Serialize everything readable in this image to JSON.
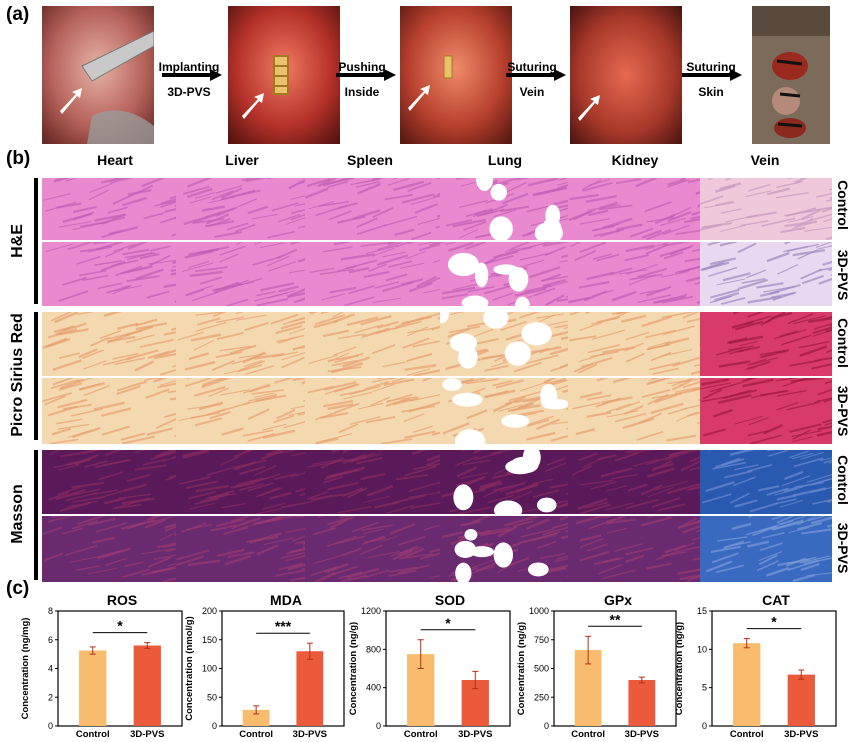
{
  "panel_a": {
    "letter": "(a)",
    "steps": [
      {
        "line1": "Implanting",
        "line2": "3D-PVS"
      },
      {
        "line1": "Pushing",
        "line2": "Inside"
      },
      {
        "line1": "Suturing",
        "line2": "Vein"
      },
      {
        "line1": "Suturing",
        "line2": "Skin"
      }
    ]
  },
  "panel_b": {
    "letter": "(b)",
    "columns": [
      "Heart",
      "Liver",
      "Spleen",
      "Lung",
      "Kidney",
      "Vein"
    ],
    "stains": [
      {
        "name": "H&E",
        "rows": [
          "Control",
          "3D-PVS"
        ]
      },
      {
        "name": "Picro Sirius Red",
        "rows": [
          "Control",
          "3D-PVS"
        ]
      },
      {
        "name": "Masson",
        "rows": [
          "Control",
          "3D-PVS"
        ]
      }
    ]
  },
  "panel_c": {
    "letter": "(c)"
  },
  "chart_data": [
    {
      "type": "bar",
      "title": "ROS",
      "ylabel": "Concentration (ng/mg)",
      "categories": [
        "Control",
        "3D-PVS"
      ],
      "values": [
        5.25,
        5.6
      ],
      "errors": [
        0.25,
        0.2
      ],
      "ylim": [
        0,
        8
      ],
      "yticks": [
        "0",
        "2",
        "4",
        "6",
        "8"
      ],
      "significance": "*"
    },
    {
      "type": "bar",
      "title": "MDA",
      "ylabel": "Concentration (nmol/g)",
      "categories": [
        "Control",
        "3D-PVS"
      ],
      "values": [
        28,
        130
      ],
      "errors": [
        7,
        14
      ],
      "ylim": [
        0,
        200
      ],
      "yticks": [
        "0",
        "50",
        "100",
        "150",
        "200"
      ],
      "significance": "***"
    },
    {
      "type": "bar",
      "title": "SOD",
      "ylabel": "Concentration (ng/g)",
      "categories": [
        "Control",
        "3D-PVS"
      ],
      "values": [
        750,
        480
      ],
      "errors": [
        150,
        90
      ],
      "ylim": [
        0,
        1200
      ],
      "yticks": [
        "0",
        "400",
        "800",
        "1200"
      ],
      "significance": "*"
    },
    {
      "type": "bar",
      "title": "GPx",
      "ylabel": "Concentration (ng/g)",
      "categories": [
        "Control",
        "3D-PVS"
      ],
      "values": [
        660,
        400
      ],
      "errors": [
        120,
        25
      ],
      "ylim": [
        0,
        1000
      ],
      "yticks": [
        "0",
        "250",
        "500",
        "750",
        "1000"
      ],
      "significance": "**"
    },
    {
      "type": "bar",
      "title": "CAT",
      "ylabel": "Concentration (ng/g)",
      "categories": [
        "Control",
        "3D-PVS"
      ],
      "values": [
        10.8,
        6.7
      ],
      "errors": [
        0.6,
        0.6
      ],
      "ylim": [
        0,
        15
      ],
      "yticks": [
        "0",
        "5",
        "10",
        "15"
      ],
      "significance": "*"
    }
  ],
  "colors": {
    "control_bar": "#f9bb6e",
    "treated_bar": "#ec5a3c",
    "error_bar": "#b0301a"
  }
}
